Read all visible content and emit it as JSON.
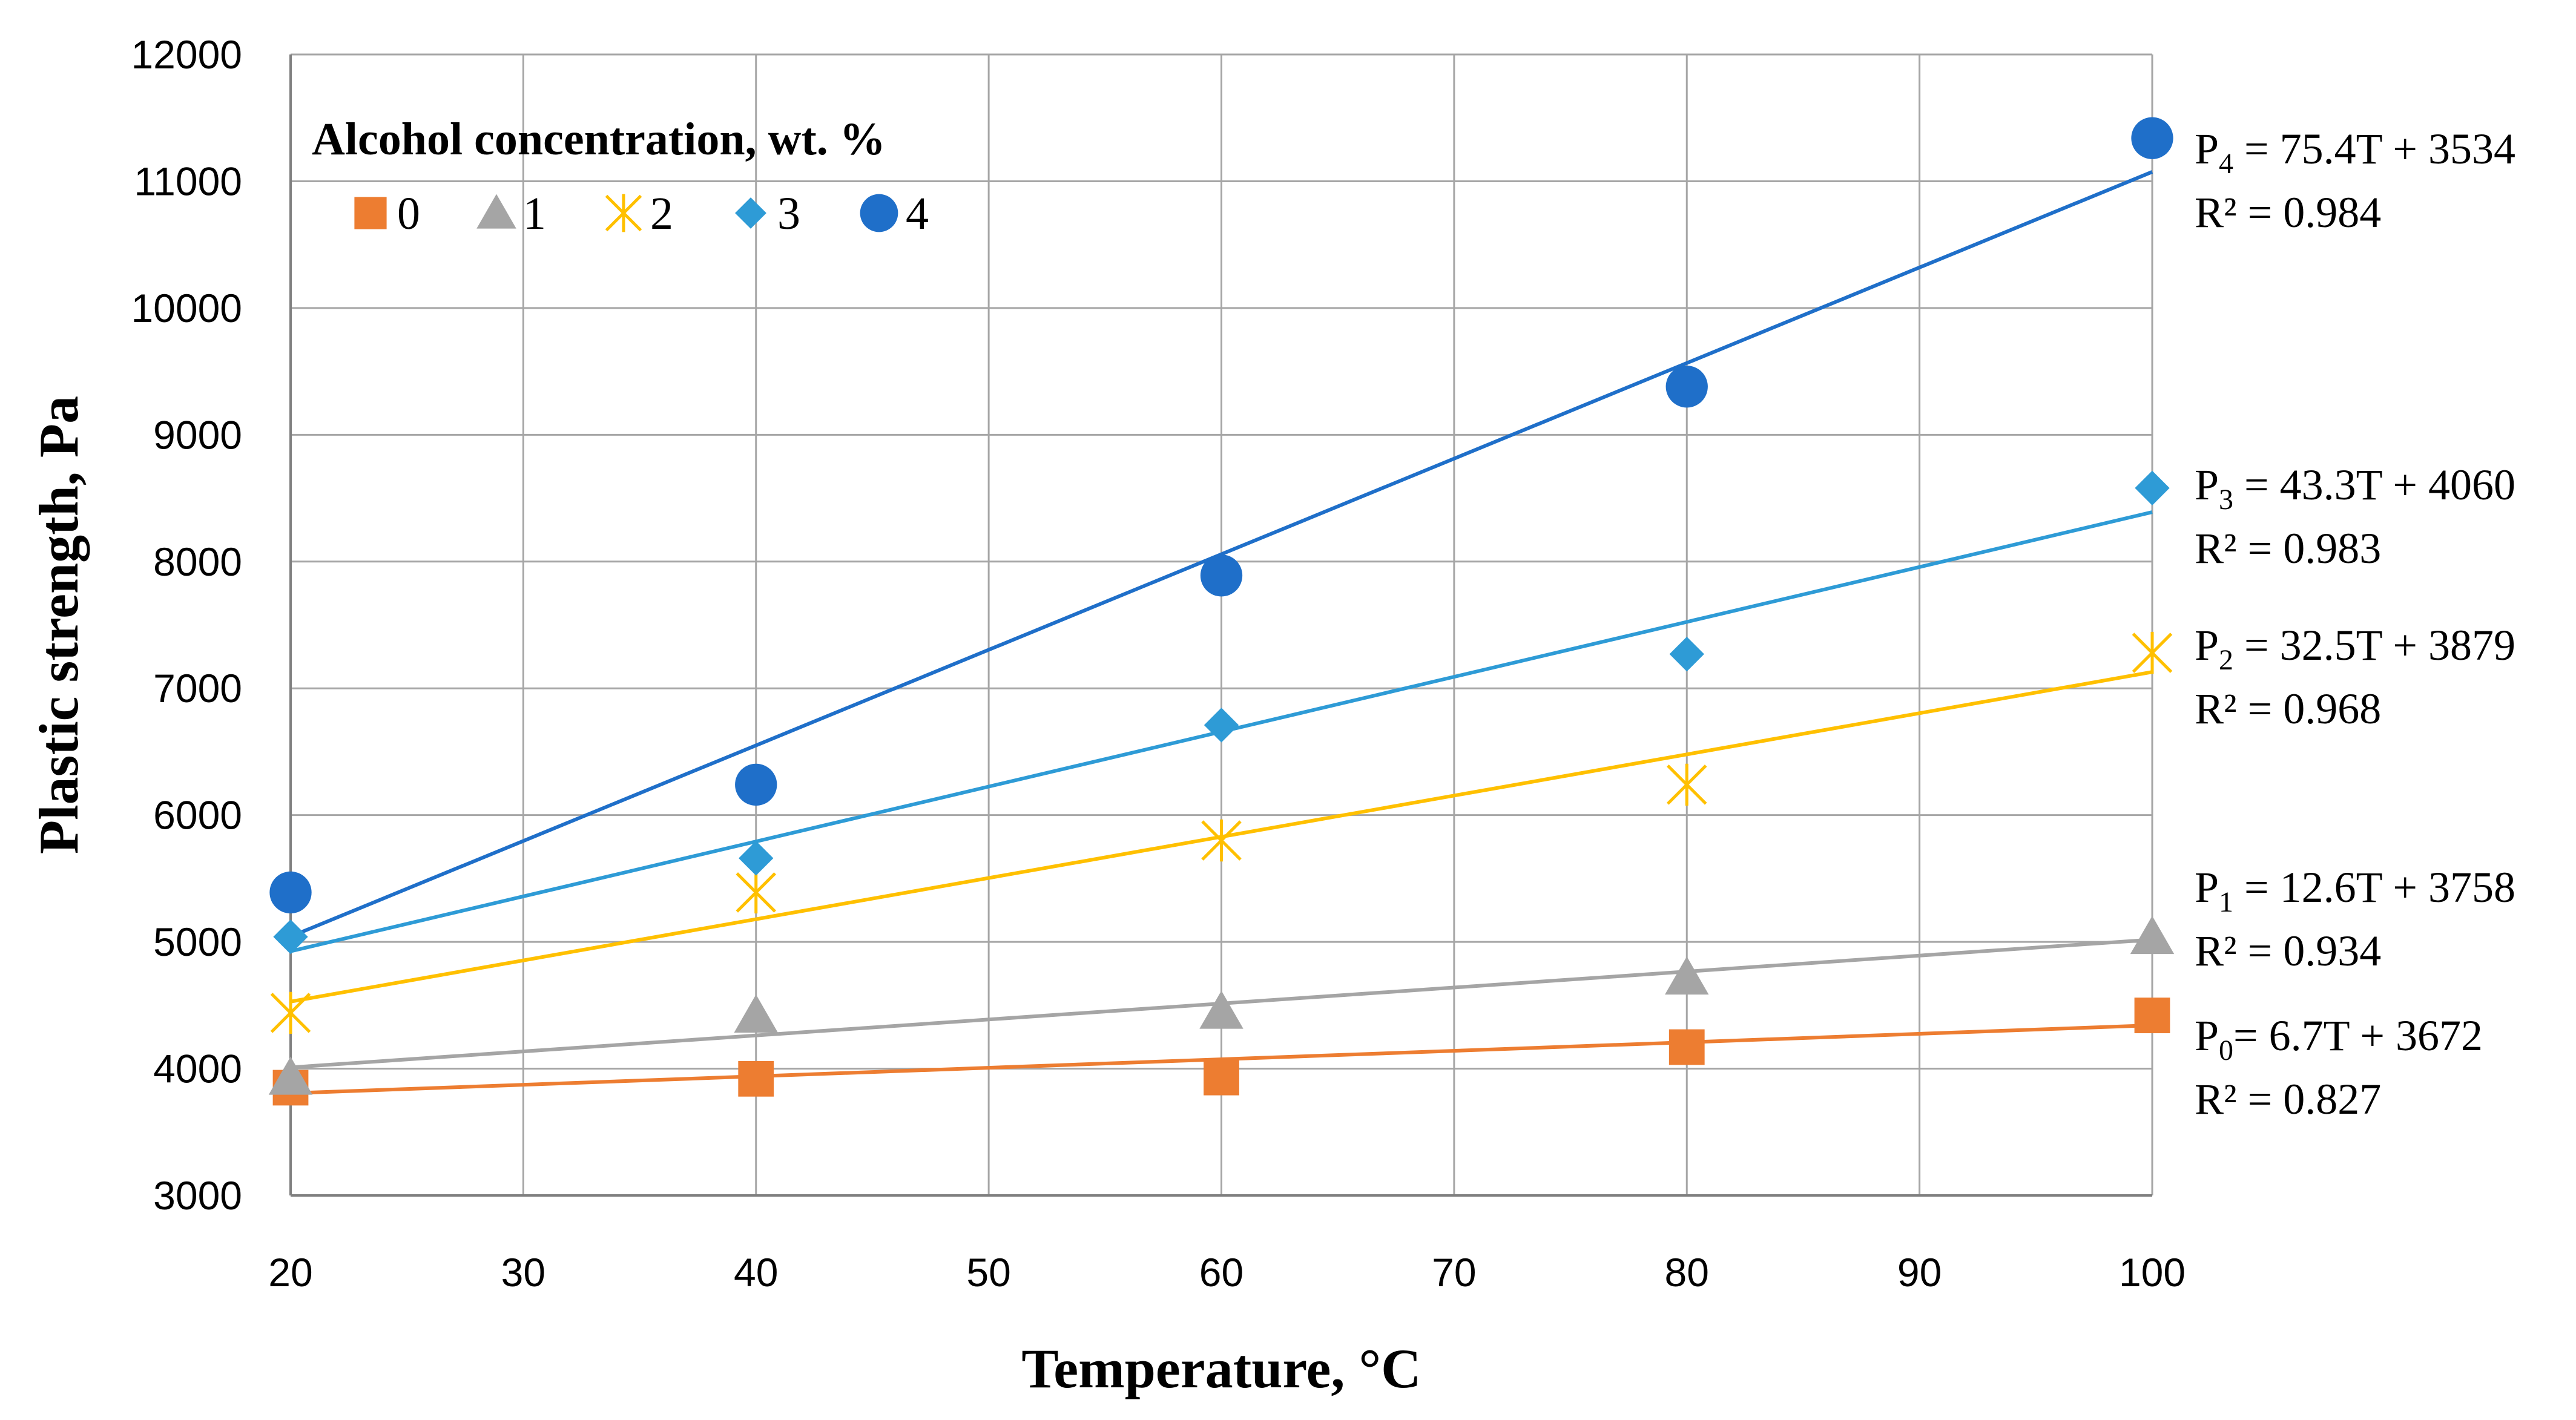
{
  "chart_data": {
    "type": "scatter",
    "xlabel": "Temperature, °C",
    "ylabel": "Plastic strength, Pa",
    "xlim": [
      20,
      100
    ],
    "ylim": [
      3000,
      12000
    ],
    "xticks": [
      "20",
      "30",
      "40",
      "50",
      "60",
      "70",
      "80",
      "90",
      "100"
    ],
    "yticks": [
      "3000",
      "4000",
      "5000",
      "6000",
      "7000",
      "8000",
      "9000",
      "10000",
      "11000",
      "12000"
    ],
    "grid": true,
    "legend": {
      "title": "Alcohol concentration, wt. %",
      "placement": "top-left"
    },
    "x": [
      20,
      40,
      60,
      80,
      100
    ],
    "series": [
      {
        "name": "0",
        "marker": "square",
        "color": "#ED7D31",
        "values": [
          3850,
          3920,
          3930,
          4170,
          4420
        ],
        "trend": {
          "slope": 6.7,
          "intercept": 3672
        },
        "equation": {
          "symbol": "P",
          "sub": "0",
          "rest": "= 6.7T + 3672"
        },
        "r2": "R² = 0.827"
      },
      {
        "name": "1",
        "marker": "triangle",
        "color": "#A5A5A5",
        "values": [
          3930,
          4420,
          4450,
          4720,
          5040
        ],
        "trend": {
          "slope": 12.6,
          "intercept": 3758
        },
        "equation": {
          "symbol": "P",
          "sub": "1",
          "rest": " = 12.6T + 3758"
        },
        "r2": "R² = 0.934"
      },
      {
        "name": "2",
        "marker": "star",
        "color": "#FFC000",
        "values": [
          4440,
          5390,
          5800,
          6240,
          7280
        ],
        "trend": {
          "slope": 32.5,
          "intercept": 3879
        },
        "equation": {
          "symbol": "P",
          "sub": "2",
          "rest": " = 32.5T + 3879"
        },
        "r2": "R² = 0.968"
      },
      {
        "name": "3",
        "marker": "diamond",
        "color": "#2E9BD6",
        "values": [
          5040,
          5660,
          6710,
          7270,
          8580
        ],
        "trend": {
          "slope": 43.3,
          "intercept": 4060
        },
        "equation": {
          "symbol": "P",
          "sub": "3",
          "rest": " = 43.3T + 4060"
        },
        "r2": "R² = 0.983"
      },
      {
        "name": "4",
        "marker": "circle",
        "color": "#1F6FC9",
        "values": [
          5390,
          6240,
          7890,
          9380,
          11340
        ],
        "trend": {
          "slope": 75.4,
          "intercept": 3534
        },
        "equation": {
          "symbol": "P",
          "sub": "4",
          "rest": " = 75.4T + 3534"
        },
        "r2": "R² = 0.984"
      }
    ]
  }
}
